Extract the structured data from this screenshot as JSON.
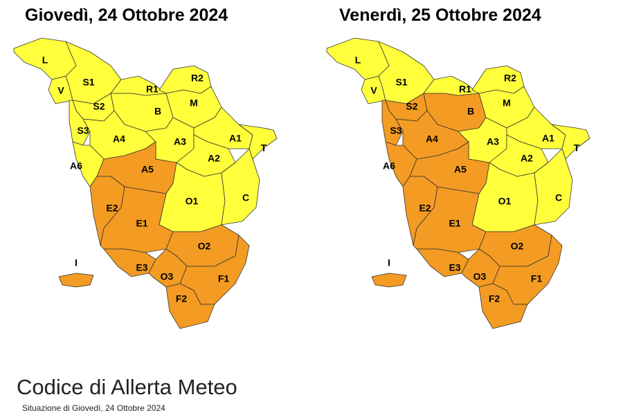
{
  "maps": [
    {
      "title": "Giovedì, 24 Ottobre 2024",
      "zones": [
        {
          "label": "L",
          "color": "#ffff3c"
        },
        {
          "label": "V",
          "color": "#ffff3c"
        },
        {
          "label": "S1",
          "color": "#ffff3c"
        },
        {
          "label": "R1",
          "color": "#ffff3c"
        },
        {
          "label": "R2",
          "color": "#ffff3c"
        },
        {
          "label": "S2",
          "color": "#ffff3c"
        },
        {
          "label": "B",
          "color": "#ffff3c"
        },
        {
          "label": "M",
          "color": "#ffff3c"
        },
        {
          "label": "S3",
          "color": "#ffff3c"
        },
        {
          "label": "A4",
          "color": "#ffff3c"
        },
        {
          "label": "A3",
          "color": "#ffff3c"
        },
        {
          "label": "A1",
          "color": "#ffff3c"
        },
        {
          "label": "T",
          "color": "#ffff3c"
        },
        {
          "label": "A6",
          "color": "#ffff3c"
        },
        {
          "label": "A5",
          "color": "#f39b22"
        },
        {
          "label": "A2",
          "color": "#ffff3c"
        },
        {
          "label": "O1",
          "color": "#ffff3c"
        },
        {
          "label": "C",
          "color": "#ffff3c"
        },
        {
          "label": "E2",
          "color": "#f39b22"
        },
        {
          "label": "E1",
          "color": "#f39b22"
        },
        {
          "label": "O2",
          "color": "#f39b22"
        },
        {
          "label": "E3",
          "color": "#f39b22"
        },
        {
          "label": "O3",
          "color": "#f39b22"
        },
        {
          "label": "F1",
          "color": "#f39b22"
        },
        {
          "label": "F2",
          "color": "#f39b22"
        },
        {
          "label": "I",
          "color": "#f39b22"
        }
      ]
    },
    {
      "title": "Venerdì, 25 Ottobre 2024",
      "zones": [
        {
          "label": "L",
          "color": "#ffff3c"
        },
        {
          "label": "V",
          "color": "#ffff3c"
        },
        {
          "label": "S1",
          "color": "#ffff3c"
        },
        {
          "label": "R1",
          "color": "#ffff3c"
        },
        {
          "label": "R2",
          "color": "#ffff3c"
        },
        {
          "label": "S2",
          "color": "#f39b22"
        },
        {
          "label": "B",
          "color": "#f39b22"
        },
        {
          "label": "M",
          "color": "#ffff3c"
        },
        {
          "label": "S3",
          "color": "#f39b22"
        },
        {
          "label": "A4",
          "color": "#f39b22"
        },
        {
          "label": "A3",
          "color": "#ffff3c"
        },
        {
          "label": "A1",
          "color": "#ffff3c"
        },
        {
          "label": "T",
          "color": "#ffff3c"
        },
        {
          "label": "A6",
          "color": "#f39b22"
        },
        {
          "label": "A5",
          "color": "#f39b22"
        },
        {
          "label": "A2",
          "color": "#ffff3c"
        },
        {
          "label": "O1",
          "color": "#ffff3c"
        },
        {
          "label": "C",
          "color": "#ffff3c"
        },
        {
          "label": "E2",
          "color": "#f39b22"
        },
        {
          "label": "E1",
          "color": "#f39b22"
        },
        {
          "label": "O2",
          "color": "#f39b22"
        },
        {
          "label": "E3",
          "color": "#f39b22"
        },
        {
          "label": "O3",
          "color": "#f39b22"
        },
        {
          "label": "F1",
          "color": "#f39b22"
        },
        {
          "label": "F2",
          "color": "#f39b22"
        },
        {
          "label": "I",
          "color": "#f39b22"
        }
      ]
    }
  ],
  "footer": {
    "title": "Codice di Allerta Meteo",
    "subtitle": "Situazione di Giovedì, 24 Ottobre 2024"
  }
}
